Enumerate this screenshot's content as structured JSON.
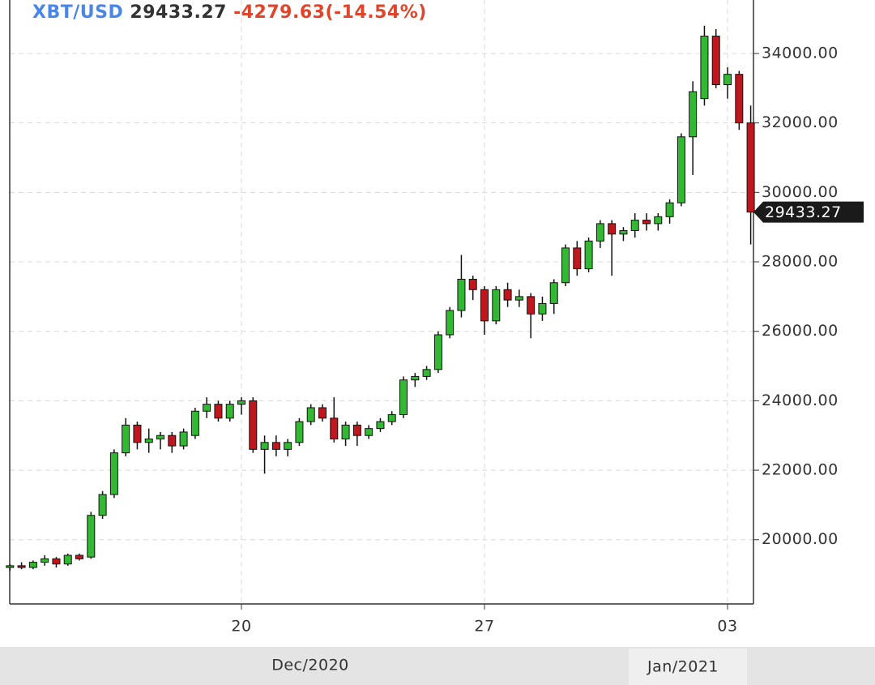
{
  "chart_data": {
    "type": "candlestick",
    "symbol": "XBT/USD",
    "price": "29433.27",
    "change": "-4279.63(-14.54%)",
    "categories": [
      null,
      null,
      null,
      null,
      null,
      null,
      null,
      null,
      null,
      null,
      null,
      null,
      null,
      null,
      null,
      null,
      null,
      null,
      null,
      null,
      "20",
      null,
      null,
      null,
      null,
      null,
      null,
      null,
      null,
      null,
      null,
      null,
      null,
      null,
      null,
      null,
      null,
      null,
      null,
      null,
      null,
      "27",
      null,
      null,
      null,
      null,
      null,
      null,
      null,
      null,
      null,
      null,
      null,
      null,
      null,
      null,
      null,
      null,
      null,
      null,
      null,
      null,
      "03",
      null,
      null
    ],
    "open": [
      19200,
      19250,
      19200,
      19350,
      19450,
      19300,
      19550,
      19500,
      20700,
      21300,
      22500,
      23300,
      22800,
      22900,
      23000,
      22700,
      23000,
      23700,
      23900,
      23500,
      23900,
      24000,
      22600,
      22800,
      22600,
      22800,
      23400,
      23800,
      23500,
      22900,
      23300,
      23000,
      23200,
      23400,
      23600,
      24600,
      24700,
      24900,
      25900,
      26600,
      27500,
      27200,
      26300,
      27200,
      26900,
      27000,
      26500,
      26800,
      27400,
      28400,
      27800,
      28600,
      29100,
      28800,
      28900,
      29200,
      29100,
      29300,
      29700,
      31600,
      32700,
      34500,
      33100,
      33400,
      32000
    ],
    "high": [
      19300,
      19350,
      19400,
      19550,
      19500,
      19600,
      19600,
      20800,
      21400,
      22600,
      23500,
      23400,
      23200,
      23100,
      23100,
      23200,
      23800,
      24100,
      24000,
      24000,
      24100,
      24100,
      23000,
      23000,
      22900,
      23500,
      23900,
      23900,
      24100,
      23400,
      23400,
      23300,
      23500,
      23700,
      24700,
      24800,
      25000,
      26000,
      26700,
      28200,
      27600,
      27300,
      27300,
      27400,
      27200,
      27100,
      27000,
      27500,
      28500,
      28600,
      28700,
      29200,
      29200,
      29000,
      29400,
      29400,
      29400,
      29800,
      31700,
      33200,
      34800,
      34700,
      33600,
      33500,
      32500
    ],
    "low": [
      19100,
      19150,
      19150,
      19250,
      19200,
      19250,
      19400,
      19450,
      20600,
      21200,
      22400,
      22600,
      22500,
      22600,
      22500,
      22600,
      22900,
      23500,
      23400,
      23400,
      23600,
      22500,
      21900,
      22400,
      22400,
      22700,
      23300,
      23400,
      22800,
      22700,
      22700,
      22900,
      23100,
      23300,
      23500,
      24400,
      24600,
      24800,
      25800,
      26400,
      26900,
      25900,
      26200,
      26700,
      26700,
      25800,
      26300,
      26500,
      27300,
      27600,
      27700,
      28400,
      27600,
      28600,
      28700,
      28900,
      28900,
      29100,
      29600,
      30500,
      32500,
      33000,
      32700,
      31800,
      28500
    ],
    "close": [
      19250,
      19200,
      19350,
      19450,
      19300,
      19550,
      19450,
      20700,
      21300,
      22500,
      23300,
      22800,
      22900,
      23000,
      22700,
      23100,
      23700,
      23900,
      23500,
      23900,
      24000,
      22600,
      22800,
      22600,
      22800,
      23400,
      23800,
      23500,
      22900,
      23300,
      23000,
      23200,
      23400,
      23600,
      24600,
      24700,
      24900,
      25900,
      26600,
      27500,
      27200,
      26300,
      27200,
      26900,
      27000,
      26500,
      26800,
      27400,
      28400,
      27800,
      28600,
      29100,
      28800,
      28900,
      29200,
      29100,
      29300,
      29700,
      31600,
      32900,
      34500,
      33100,
      33400,
      32000,
      29433.27
    ],
    "up_color": "#33b833",
    "down_color": "#c0161e",
    "ylim": [
      18150,
      35540
    ],
    "yticks": [
      {
        "value": 20000,
        "label": "20000.00"
      },
      {
        "value": 22000,
        "label": "22000.00"
      },
      {
        "value": 24000,
        "label": "24000.00"
      },
      {
        "value": 26000,
        "label": "26000.00"
      },
      {
        "value": 28000,
        "label": "28000.00"
      },
      {
        "value": 30000,
        "label": "30000.00"
      },
      {
        "value": 32000,
        "label": "32000.00"
      },
      {
        "value": 34000,
        "label": "34000.00"
      }
    ],
    "period_labels": [
      "Dec/2020",
      "Jan/2021"
    ],
    "grid": true
  }
}
